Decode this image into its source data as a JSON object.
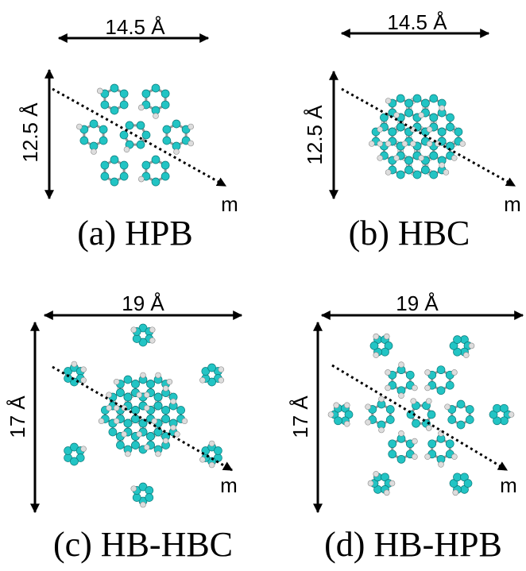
{
  "panels": [
    {
      "caption": "(a) HPB",
      "width_label": "14.5 Å",
      "height_label": "12.5 Å",
      "axis_label": "m"
    },
    {
      "caption": "(b) HBC",
      "width_label": "14.5 Å",
      "height_label": "12.5 Å",
      "axis_label": "m"
    },
    {
      "caption": "(c) HB-HBC",
      "width_label": "19 Å",
      "height_label": "17 Å",
      "axis_label": "m"
    },
    {
      "caption": "(d) HB-HPB",
      "width_label": "19 Å",
      "height_label": "17 Å",
      "axis_label": "m"
    }
  ]
}
